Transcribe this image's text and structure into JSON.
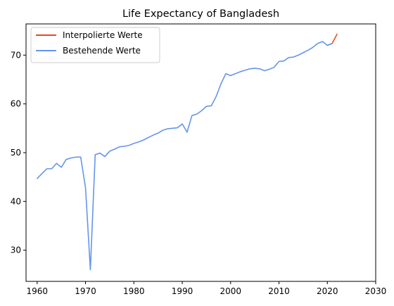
{
  "chart_data": {
    "type": "line",
    "title": "Life Expectancy of Bangladesh",
    "xlabel": "",
    "ylabel": "",
    "xlim": [
      1957.7,
      2030
    ],
    "ylim": [
      23.6,
      76.4
    ],
    "xticks": [
      1960,
      1970,
      1980,
      1990,
      2000,
      2010,
      2020,
      2030
    ],
    "yticks": [
      30,
      40,
      50,
      60,
      70
    ],
    "grid": false,
    "legend_position": "top-left",
    "series": [
      {
        "name": "Interpolierte Werte",
        "color": "#e8491d",
        "x": [
          2020,
          2021,
          2022
        ],
        "y": [
          72.0,
          72.4,
          74.3
        ]
      },
      {
        "name": "Bestehende Werte",
        "color": "#6495ed",
        "x": [
          1960,
          1961,
          1962,
          1963,
          1964,
          1965,
          1966,
          1967,
          1968,
          1969,
          1970,
          1971,
          1972,
          1973,
          1974,
          1975,
          1976,
          1977,
          1978,
          1979,
          1980,
          1981,
          1982,
          1983,
          1984,
          1985,
          1986,
          1987,
          1988,
          1989,
          1990,
          1991,
          1992,
          1993,
          1994,
          1995,
          1996,
          1997,
          1998,
          1999,
          2000,
          2001,
          2002,
          2003,
          2004,
          2005,
          2006,
          2007,
          2008,
          2009,
          2010,
          2011,
          2012,
          2013,
          2014,
          2015,
          2016,
          2017,
          2018,
          2019,
          2020,
          2021
        ],
        "y": [
          44.7,
          45.7,
          46.7,
          46.7,
          47.8,
          47.0,
          48.6,
          48.9,
          49.1,
          49.1,
          42.8,
          26.0,
          49.6,
          49.9,
          49.2,
          50.3,
          50.7,
          51.2,
          51.3,
          51.5,
          51.9,
          52.2,
          52.6,
          53.1,
          53.6,
          54.0,
          54.6,
          54.9,
          55.0,
          55.1,
          55.9,
          54.2,
          57.6,
          57.9,
          58.6,
          59.5,
          59.6,
          61.5,
          64.1,
          66.2,
          65.8,
          66.2,
          66.6,
          66.9,
          67.2,
          67.3,
          67.2,
          66.8,
          67.1,
          67.5,
          68.7,
          68.8,
          69.5,
          69.6,
          70.0,
          70.5,
          71.0,
          71.6,
          72.4,
          72.8,
          72.0,
          72.4
        ]
      }
    ]
  }
}
